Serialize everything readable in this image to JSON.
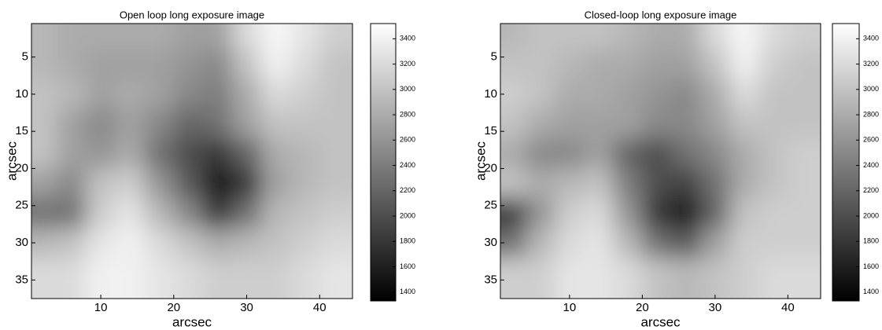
{
  "chart_data": [
    {
      "type": "heatmap",
      "title": "Open loop long exposure image",
      "xlabel": "arcsec",
      "ylabel": "arcsec",
      "colormap": "gray",
      "y_reversed": true,
      "x": [
        2,
        6,
        10,
        14,
        18,
        22,
        26,
        30,
        34,
        38,
        42
      ],
      "y": [
        2,
        6,
        10,
        14,
        18,
        22,
        26,
        30,
        34
      ],
      "z": [
        [
          2900,
          2800,
          2800,
          2800,
          2800,
          2700,
          2700,
          3200,
          3450,
          3300,
          3100
        ],
        [
          2900,
          2800,
          2700,
          2700,
          2700,
          2600,
          2500,
          3000,
          3400,
          3200,
          3000
        ],
        [
          3000,
          2900,
          2700,
          2800,
          2700,
          2500,
          2400,
          2800,
          3200,
          3100,
          3000
        ],
        [
          3000,
          2700,
          2500,
          2700,
          2500,
          2200,
          2300,
          2700,
          3000,
          3000,
          3000
        ],
        [
          3000,
          2700,
          2600,
          2800,
          2300,
          2000,
          1800,
          2200,
          2800,
          2900,
          3000
        ],
        [
          2700,
          2500,
          3000,
          3100,
          2600,
          2100,
          1500,
          1800,
          2700,
          2900,
          3000
        ],
        [
          2300,
          2300,
          3100,
          3300,
          2900,
          2500,
          1800,
          2300,
          2900,
          3000,
          3100
        ],
        [
          2900,
          3000,
          3300,
          3400,
          3200,
          3000,
          2800,
          2900,
          3000,
          3100,
          3200
        ],
        [
          3200,
          3200,
          3400,
          3400,
          3300,
          3200,
          3100,
          3100,
          3100,
          3200,
          3300
        ]
      ],
      "xlim": [
        0.5,
        44.5
      ],
      "ylim": [
        0.5,
        37.5
      ],
      "xticks": [
        10,
        20,
        30,
        40
      ],
      "yticks": [
        5,
        10,
        15,
        20,
        25,
        30,
        35
      ],
      "clim": [
        1330,
        3520
      ],
      "cticks": [
        1400,
        1600,
        1800,
        2000,
        2200,
        2400,
        2600,
        2800,
        3000,
        3200,
        3400
      ]
    },
    {
      "type": "heatmap",
      "title": "Closed-loop long exposure image",
      "xlabel": "arcsec",
      "ylabel": "arcsec",
      "colormap": "gray",
      "y_reversed": true,
      "x": [
        2,
        6,
        10,
        14,
        18,
        22,
        26,
        30,
        34,
        38,
        42
      ],
      "y": [
        2,
        6,
        10,
        14,
        18,
        22,
        26,
        30,
        34
      ],
      "z": [
        [
          2900,
          3000,
          3000,
          3000,
          2900,
          2800,
          2800,
          3200,
          3450,
          3200,
          3100
        ],
        [
          3000,
          3000,
          2900,
          2800,
          2800,
          2700,
          2700,
          3000,
          3400,
          3100,
          3000
        ],
        [
          3100,
          3000,
          2800,
          2800,
          2700,
          2600,
          2500,
          2800,
          3200,
          3000,
          3000
        ],
        [
          3000,
          2800,
          2700,
          2700,
          2700,
          2500,
          2500,
          2700,
          3000,
          3000,
          3000
        ],
        [
          2800,
          2500,
          2500,
          2700,
          2200,
          2000,
          2300,
          2500,
          2800,
          3000,
          3100
        ],
        [
          3000,
          2800,
          2900,
          3000,
          2400,
          2000,
          1900,
          2300,
          2800,
          3000,
          3100
        ],
        [
          1800,
          2600,
          3100,
          3200,
          2600,
          1800,
          1500,
          2200,
          3000,
          3100,
          3100
        ],
        [
          2300,
          2900,
          3200,
          3300,
          2900,
          2300,
          2100,
          2700,
          3100,
          3100,
          3100
        ],
        [
          3100,
          3100,
          3300,
          3300,
          3200,
          3000,
          2900,
          3000,
          3100,
          3200,
          3200
        ]
      ],
      "xlim": [
        0.5,
        44.5
      ],
      "ylim": [
        0.5,
        37.5
      ],
      "xticks": [
        10,
        20,
        30,
        40
      ],
      "yticks": [
        5,
        10,
        15,
        20,
        25,
        30,
        35
      ],
      "clim": [
        1330,
        3520
      ],
      "cticks": [
        1400,
        1600,
        1800,
        2000,
        2200,
        2400,
        2600,
        2800,
        3000,
        3200,
        3400
      ]
    }
  ]
}
